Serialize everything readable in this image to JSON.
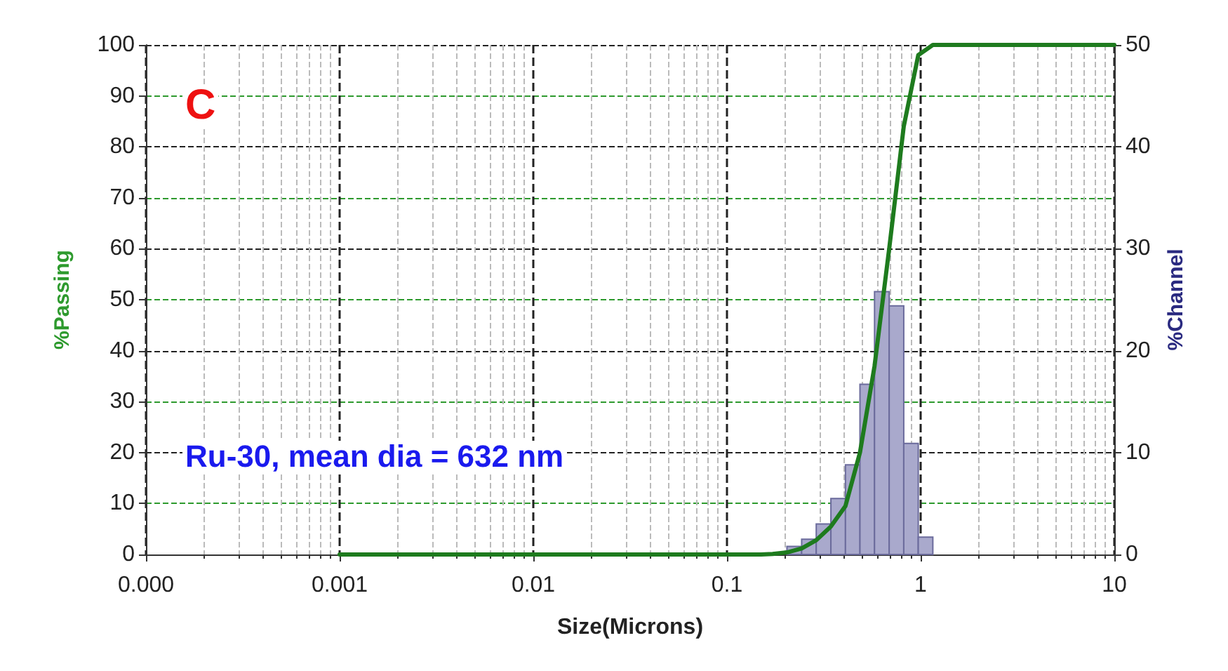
{
  "chart_data": {
    "type": "histogram",
    "xlabel": "Size(Microns)",
    "ylabel": "%Passing",
    "y2label": "%Channel",
    "annotations": [
      "C",
      "Ru-30, mean dia = 632 nm"
    ],
    "log": "x",
    "grid": true,
    "xlim": [
      0.0001,
      10
    ],
    "xticks": [
      {
        "value": 0.0001,
        "label": "0.000"
      },
      0.001,
      0.01,
      0.1,
      1,
      10
    ],
    "ylim": [
      0,
      100
    ],
    "yticks": [
      0,
      10,
      20,
      30,
      40,
      50,
      60,
      70,
      80,
      90,
      100
    ],
    "y2lim": [
      0,
      50
    ],
    "y2ticks": [
      0,
      10,
      20,
      30,
      40,
      50
    ],
    "series": [
      {
        "axis": "y2",
        "color": "#a9a9cc",
        "bins": [
          0.204,
          0.243,
          0.289,
          0.344,
          0.409,
          0.486,
          0.578,
          0.688,
          0.818,
          0.972,
          1.156
        ],
        "values": [
          0.8,
          1.5,
          3,
          5.5,
          8.8,
          16.7,
          25.8,
          24.4,
          10.9,
          1.7
        ]
      },
      {
        "type": "line",
        "color": "#1e7b1e",
        "marker": "none",
        "line_style": "solid",
        "x": [
          0.001,
          0.15,
          0.172,
          0.204,
          0.243,
          0.289,
          0.344,
          0.409,
          0.486,
          0.578,
          0.688,
          0.818,
          0.972,
          1.156,
          10
        ],
        "values": [
          0,
          0,
          0.1,
          0.4,
          1.2,
          2.8,
          5.5,
          9.5,
          20,
          37,
          60,
          84,
          98,
          100,
          100
        ]
      }
    ]
  }
}
